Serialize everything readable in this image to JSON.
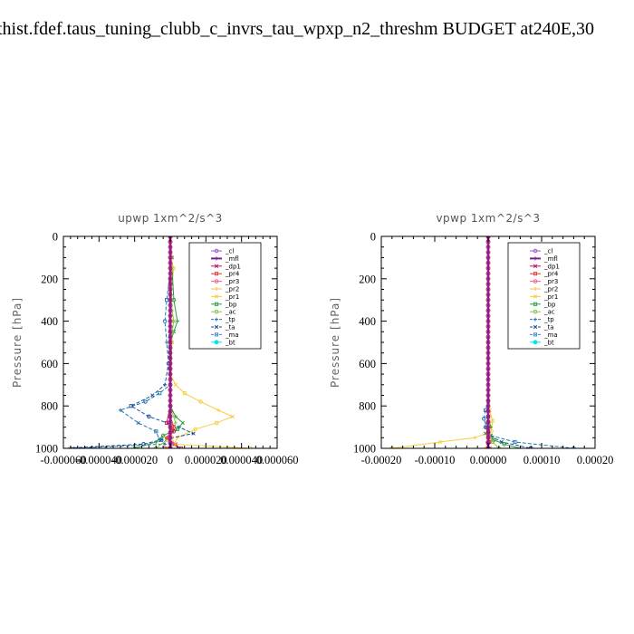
{
  "page_title": "thist.fdef.taus_tuning_clubb_c_invrs_tau_wpxp_n2_threshm  BUDGET at240E,30",
  "legend_entries": [
    {
      "name": "_cl",
      "color": "#9b59d0"
    },
    {
      "name": "_mfl",
      "color": "#7b1fa2"
    },
    {
      "name": "_dp1",
      "color": "#c2185b"
    },
    {
      "name": "_pr4",
      "color": "#e53935"
    },
    {
      "name": "_pr3",
      "color": "#f06292"
    },
    {
      "name": "_pr2",
      "color": "#ffb74d"
    },
    {
      "name": "_pr1",
      "color": "#f4d03f"
    },
    {
      "name": "_bp",
      "color": "#2e9e3f"
    },
    {
      "name": "_ac",
      "color": "#8bc34a"
    },
    {
      "name": "_tp",
      "color": "#1f77b4"
    },
    {
      "name": "_ta",
      "color": "#1a4f9c"
    },
    {
      "name": "_ma",
      "color": "#3a8fc4"
    },
    {
      "name": "_bt",
      "color": "#00e5ee"
    }
  ],
  "chart_data": [
    {
      "type": "line",
      "title": "upwp   1xm^2/s^3",
      "ylabel": "Pressure [hPa]",
      "xlabel": "",
      "xlim": [
        -6e-05,
        6e-05
      ],
      "ylim": [
        1000,
        0
      ],
      "x_ticks": [
        -6e-05,
        -4e-05,
        -2e-05,
        0,
        2e-05,
        4e-05,
        6e-05
      ],
      "x_tick_labels": [
        "-0.000060",
        "-0.000040",
        "-0.000020",
        "0",
        "0.000020",
        "0.000040",
        "0.000060"
      ],
      "y_ticks": [
        0,
        200,
        400,
        600,
        800,
        1000
      ],
      "y_tick_labels": [
        "0",
        "200",
        "400",
        "600",
        "800",
        "1000"
      ],
      "legend_position": "top-right",
      "series": [
        {
          "name": "_pr1",
          "x": [
            0,
            0,
            2e-06,
            0,
            1e-06,
            0,
            3e-06,
            8e-06,
            1.7e-05,
            2.7e-05,
            3.5e-05,
            2.6e-05,
            1.4e-05,
            4e-06,
            2e-06,
            4.5e-05
          ],
          "y": [
            0,
            100,
            150,
            300,
            500,
            650,
            700,
            740,
            780,
            820,
            850,
            880,
            910,
            950,
            980,
            1000
          ]
        },
        {
          "name": "_tp",
          "x": [
            0,
            1e-06,
            -2e-06,
            -3e-06,
            -2e-06,
            0,
            -6e-06,
            -1.4e-05,
            -2.8e-05,
            -1.8e-05,
            -8e-06,
            -6e-06,
            -3e-06,
            -5.5e-05
          ],
          "y": [
            0,
            100,
            300,
            400,
            500,
            700,
            740,
            780,
            820,
            880,
            920,
            960,
            980,
            1000
          ]
        },
        {
          "name": "_ta",
          "x": [
            0,
            0,
            -1e-06,
            -3e-06,
            -1e-05,
            -2.2e-05,
            -1.2e-05,
            5e-06,
            1.3e-05,
            -5e-06,
            -1.5e-05,
            -6e-05
          ],
          "y": [
            0,
            200,
            600,
            700,
            750,
            800,
            850,
            900,
            930,
            960,
            980,
            1000
          ]
        },
        {
          "name": "_bp",
          "x": [
            0,
            2e-06,
            4e-06,
            2e-06,
            0,
            0,
            3e-06,
            7e-06,
            4e-06,
            -4e-06,
            -8e-06,
            -2e-05
          ],
          "y": [
            0,
            300,
            400,
            450,
            500,
            800,
            850,
            880,
            910,
            940,
            970,
            1000
          ]
        },
        {
          "name": "_ac",
          "x": [
            0,
            1e-06,
            2e-06,
            1e-06,
            0,
            3e-06,
            1e-06,
            -2e-06,
            -8e-06
          ],
          "y": [
            0,
            350,
            400,
            450,
            800,
            880,
            920,
            960,
            1000
          ]
        },
        {
          "name": "_dp1",
          "x": [
            0,
            0,
            -2e-06,
            2e-06,
            -2e-06,
            1e-06,
            6e-06
          ],
          "y": [
            0,
            800,
            880,
            920,
            950,
            980,
            1000
          ]
        },
        {
          "name": "_pr4",
          "x": [
            0,
            0,
            2e-06,
            -2e-06,
            3e-06,
            -3e-06
          ],
          "y": [
            0,
            850,
            900,
            950,
            980,
            1000
          ]
        },
        {
          "name": "_pr3",
          "x": [
            0,
            0,
            -1e-06,
            1e-06,
            -1e-06
          ],
          "y": [
            0,
            900,
            950,
            980,
            1000
          ]
        },
        {
          "name": "_pr2",
          "x": [
            0,
            1e-06,
            0,
            0,
            2e-06,
            -2e-06
          ],
          "y": [
            0,
            100,
            200,
            900,
            980,
            1000
          ]
        },
        {
          "name": "_cl",
          "x": [
            0,
            0,
            1e-06,
            0
          ],
          "y": [
            0,
            950,
            980,
            1000
          ]
        },
        {
          "name": "_mfl",
          "x": [
            0,
            0
          ],
          "y": [
            0,
            1000
          ]
        }
      ]
    },
    {
      "type": "line",
      "title": "vpwp   1xm^2/s^3",
      "ylabel": "Pressure [hPa]",
      "xlabel": "",
      "xlim": [
        -0.0002,
        0.0002
      ],
      "ylim": [
        1000,
        0
      ],
      "x_ticks": [
        -0.0002,
        -0.0001,
        0,
        0.0001,
        0.0002
      ],
      "x_tick_labels": [
        "-0.00020",
        "-0.00010",
        "0.00000",
        "0.00010",
        "0.00020"
      ],
      "y_ticks": [
        0,
        200,
        400,
        600,
        800,
        1000
      ],
      "y_tick_labels": [
        "0",
        "200",
        "400",
        "600",
        "800",
        "1000"
      ],
      "legend_position": "top-right",
      "series": [
        {
          "name": "_pr1",
          "x": [
            0,
            0,
            3e-06,
            8e-06,
            6e-06,
            -2.5e-05,
            -9e-05,
            -0.00018
          ],
          "y": [
            0,
            750,
            820,
            870,
            920,
            950,
            970,
            1000
          ]
        },
        {
          "name": "_tp",
          "x": [
            0,
            0,
            -5e-06,
            -8e-06,
            -3e-06,
            5e-06,
            5e-05,
            0.00016
          ],
          "y": [
            0,
            780,
            820,
            860,
            900,
            940,
            970,
            1000
          ]
        },
        {
          "name": "_ta",
          "x": [
            0,
            0,
            -5e-06,
            3e-06,
            2.5e-05,
            8e-05
          ],
          "y": [
            0,
            850,
            900,
            940,
            970,
            1000
          ]
        },
        {
          "name": "_bp",
          "x": [
            0,
            0,
            5e-06,
            -5e-06,
            1e-05,
            3e-05,
            6e-05
          ],
          "y": [
            0,
            850,
            900,
            930,
            960,
            980,
            1000
          ]
        },
        {
          "name": "_ac",
          "x": [
            0,
            0,
            3e-06,
            8e-06,
            2e-05
          ],
          "y": [
            0,
            900,
            940,
            970,
            1000
          ]
        },
        {
          "name": "_pr2",
          "x": [
            0,
            0,
            2e-06,
            -3e-06
          ],
          "y": [
            0,
            900,
            960,
            1000
          ]
        },
        {
          "name": "_dp1",
          "x": [
            0,
            0,
            2e-06,
            -2e-06
          ],
          "y": [
            0,
            920,
            970,
            1000
          ]
        },
        {
          "name": "_pr4",
          "x": [
            0,
            0,
            -2e-06,
            3e-06
          ],
          "y": [
            0,
            940,
            970,
            1000
          ]
        },
        {
          "name": "_cl",
          "x": [
            0,
            0
          ],
          "y": [
            0,
            1000
          ]
        },
        {
          "name": "_mfl",
          "x": [
            0,
            0
          ],
          "y": [
            0,
            1000
          ]
        }
      ]
    }
  ]
}
